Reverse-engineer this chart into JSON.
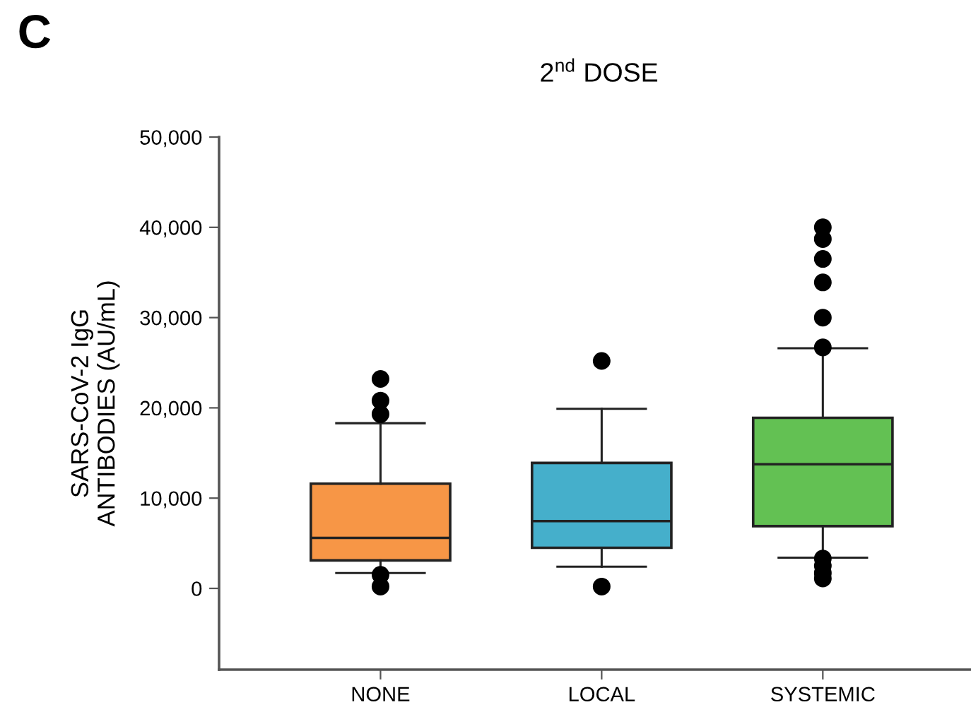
{
  "chart_data": {
    "type": "box",
    "title": "2$^{nd}$ DOSE",
    "ylabel": "SARS-CoV-2 IgG\nANTIBODIES (AU/mL)",
    "annotations": [
      "C"
    ],
    "categories": [
      "NONE",
      "LOCAL",
      "SYSTEMIC"
    ],
    "colors": [
      "#f79646",
      "#45afcb",
      "#63c153"
    ],
    "boxes": [
      {
        "low": 1700,
        "q1": 3100,
        "median": 5600,
        "q3": 11600,
        "high": 18300,
        "outliers": [
          23200,
          20800,
          19300,
          1500,
          200
        ]
      },
      {
        "low": 2400,
        "q1": 4500,
        "median": 7450,
        "q3": 13900,
        "high": 19900,
        "outliers": [
          25200,
          200
        ]
      },
      {
        "low": 3400,
        "q1": 6900,
        "median": 13750,
        "q3": 18900,
        "high": 26600,
        "outliers": [
          40000,
          38700,
          36500,
          33900,
          30000,
          26700,
          3300,
          2500,
          1700,
          1100
        ]
      }
    ],
    "ylim": [
      -9000,
      50000
    ],
    "yticks": [
      {
        "value": 0,
        "label": "0"
      },
      {
        "value": 10000,
        "label": "10,000"
      },
      {
        "value": 20000,
        "label": "20,000"
      },
      {
        "value": 30000,
        "label": "30,000"
      },
      {
        "value": 40000,
        "label": "40,000"
      },
      {
        "value": 50000,
        "label": "50,000"
      }
    ],
    "grid": false
  }
}
